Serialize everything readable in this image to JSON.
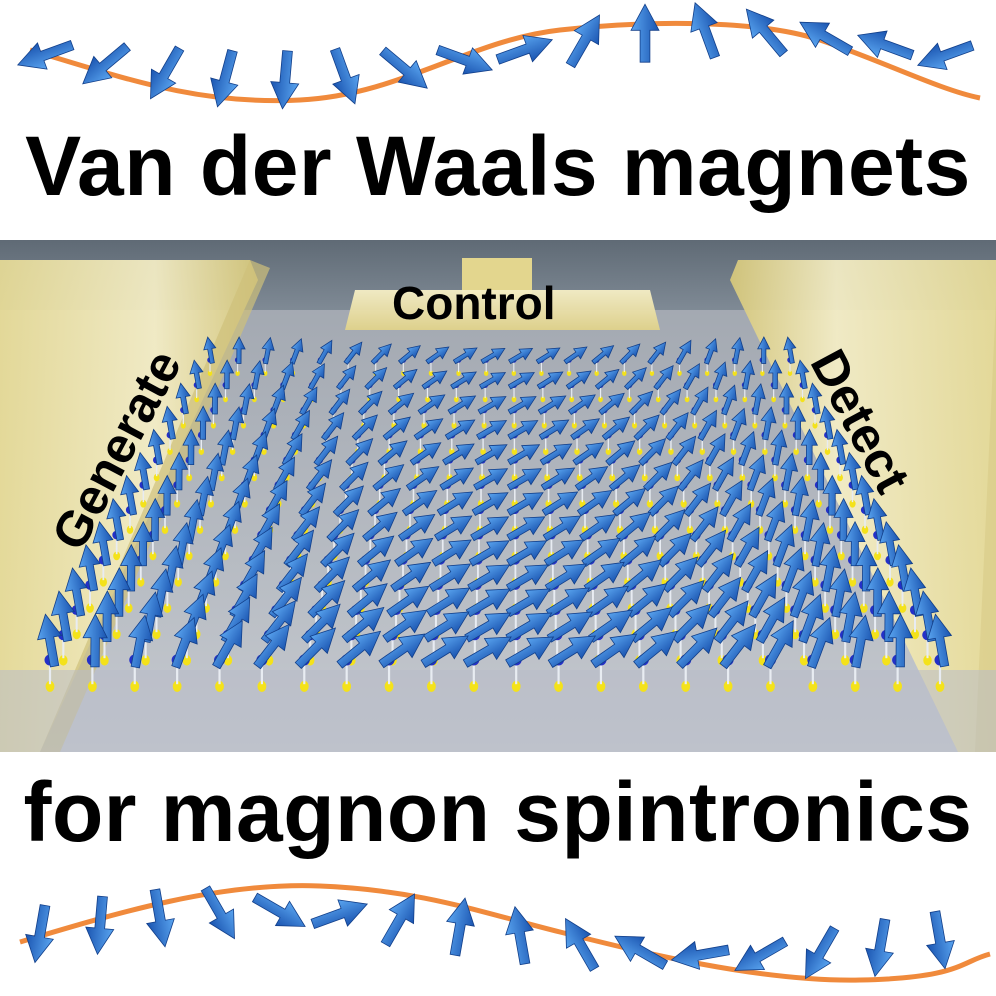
{
  "headline_top": "Van der Waals magnets",
  "headline_bottom": "for magnon spintronics",
  "labels": {
    "generate": "Generate",
    "control": "Control",
    "detect": "Detect"
  },
  "colors": {
    "arrow": "#2a7ad8",
    "arrow_dark": "#1a54b0",
    "wave_line": "#f08a3c",
    "electrode": "#efe6a6",
    "substrate": "#8c939f",
    "background_wall": "#6c7884",
    "atom_yellow": "#f4e21a",
    "atom_blue": "#2430c8"
  }
}
